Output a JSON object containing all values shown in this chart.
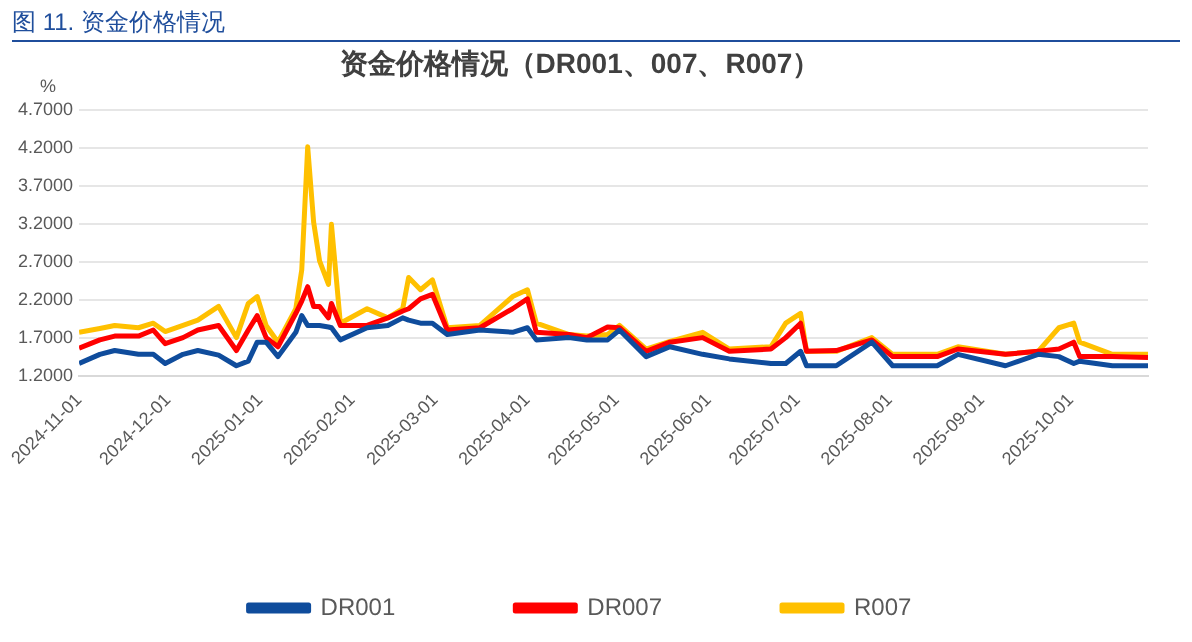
{
  "chart_data": {
    "type": "line",
    "title": "资金价格情况（DR001、007、R007）",
    "ylabel": "%",
    "annotations": [
      "图 11.  资金价格情况"
    ],
    "x": [
      "2024-11-01",
      "2024-11-08",
      "2024-11-13",
      "2024-11-21",
      "2024-11-26",
      "2024-11-30",
      "2024-12-06",
      "2024-12-11",
      "2024-12-18",
      "2024-12-24",
      "2024-12-28",
      "2024-12-31",
      "2025-01-03",
      "2025-01-07",
      "2025-01-13",
      "2025-01-15",
      "2025-01-17",
      "2025-01-19",
      "2025-01-21",
      "2025-01-24",
      "2025-01-25",
      "2025-01-28",
      "2025-02-06",
      "2025-02-13",
      "2025-02-18",
      "2025-02-20",
      "2025-02-24",
      "2025-02-28",
      "2025-03-05",
      "2025-03-16",
      "2025-03-27",
      "2025-04-01",
      "2025-04-04",
      "2025-04-15",
      "2025-04-21",
      "2025-04-28",
      "2025-05-02",
      "2025-05-11",
      "2025-05-19",
      "2025-05-30",
      "2025-06-08",
      "2025-06-22",
      "2025-06-27",
      "2025-07-02",
      "2025-07-04",
      "2025-07-14",
      "2025-07-26",
      "2025-08-02",
      "2025-08-17",
      "2025-08-24",
      "2025-09-09",
      "2025-09-20",
      "2025-09-27",
      "2025-10-02",
      "2025-10-04",
      "2025-10-15",
      "2025-10-27"
    ],
    "series": [
      {
        "name": "DR001",
        "color": "#0f4c9c",
        "values": [
          1.36,
          1.48,
          1.53,
          1.48,
          1.48,
          1.36,
          1.48,
          1.53,
          1.47,
          1.33,
          1.39,
          1.64,
          1.64,
          1.45,
          1.77,
          1.99,
          1.86,
          1.86,
          1.86,
          1.84,
          1.83,
          1.67,
          1.83,
          1.86,
          1.96,
          1.93,
          1.89,
          1.89,
          1.74,
          1.8,
          1.77,
          1.83,
          1.67,
          1.7,
          1.67,
          1.67,
          1.8,
          1.45,
          1.58,
          1.48,
          1.42,
          1.36,
          1.36,
          1.52,
          1.33,
          1.33,
          1.64,
          1.33,
          1.33,
          1.48,
          1.33,
          1.48,
          1.45,
          1.36,
          1.39,
          1.33,
          1.33
        ]
      },
      {
        "name": "DR007",
        "color": "#ff0000",
        "values": [
          1.56,
          1.67,
          1.72,
          1.72,
          1.8,
          1.62,
          1.7,
          1.8,
          1.86,
          1.53,
          1.8,
          1.99,
          1.7,
          1.58,
          2.02,
          2.18,
          2.37,
          2.11,
          2.11,
          1.96,
          2.15,
          1.86,
          1.86,
          1.96,
          2.05,
          2.08,
          2.21,
          2.27,
          1.8,
          1.83,
          2.08,
          2.21,
          1.77,
          1.74,
          1.7,
          1.84,
          1.83,
          1.52,
          1.64,
          1.7,
          1.52,
          1.55,
          1.7,
          1.89,
          1.52,
          1.53,
          1.67,
          1.45,
          1.45,
          1.55,
          1.48,
          1.52,
          1.55,
          1.64,
          1.45,
          1.45,
          1.44
        ]
      },
      {
        "name": "R007",
        "color": "#ffc000",
        "values": [
          1.77,
          1.82,
          1.86,
          1.83,
          1.89,
          1.78,
          1.86,
          1.93,
          2.11,
          1.7,
          2.15,
          2.24,
          1.86,
          1.64,
          2.08,
          2.59,
          4.21,
          3.22,
          2.71,
          2.4,
          3.19,
          1.89,
          2.08,
          1.96,
          2.08,
          2.49,
          2.33,
          2.46,
          1.83,
          1.86,
          2.24,
          2.33,
          1.89,
          1.74,
          1.72,
          1.74,
          1.86,
          1.55,
          1.65,
          1.77,
          1.55,
          1.58,
          1.89,
          2.02,
          1.52,
          1.52,
          1.7,
          1.48,
          1.48,
          1.58,
          1.48,
          1.52,
          1.83,
          1.89,
          1.64,
          1.48,
          1.48
        ]
      }
    ],
    "xlim": [
      "2024-11-01",
      "2025-10-27"
    ],
    "xticks": [
      "2024-11-01",
      "2024-12-01",
      "2025-01-01",
      "2025-02-01",
      "2025-03-01",
      "2025-04-01",
      "2025-05-01",
      "2025-06-01",
      "2025-07-01",
      "2025-08-01",
      "2025-09-01",
      "2025-10-01"
    ],
    "ylim": [
      1.2,
      4.7
    ],
    "yticks": [
      {
        "value": 1.2,
        "label": "1.2000"
      },
      {
        "value": 1.7,
        "label": "1.7000"
      },
      {
        "value": 2.2,
        "label": "2.2000"
      },
      {
        "value": 2.7,
        "label": "2.7000"
      },
      {
        "value": 3.2,
        "label": "3.2000"
      },
      {
        "value": 3.7,
        "label": "3.7000"
      },
      {
        "value": 4.2,
        "label": "4.2000"
      },
      {
        "value": 4.7,
        "label": "4.7000"
      }
    ],
    "grid": "y",
    "legend": "bottom",
    "line_style": "solid"
  }
}
